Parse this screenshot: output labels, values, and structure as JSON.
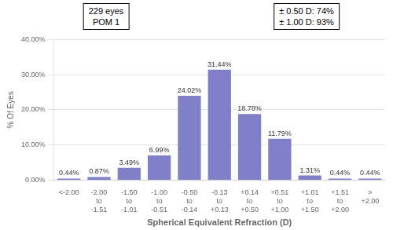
{
  "chart_data": {
    "type": "bar",
    "categories": [
      "<-2.00",
      "-2.00\nto\n-1.51",
      "-1.50\nto\n-1.01",
      "-1.00\nto\n-0.51",
      "-0.50\nto\n-0.14",
      "-0.13\nto\n+0.13",
      "+0.14\nto\n+0.50",
      "+0.51\nto\n+1.00",
      "+1.01\nto\n+1.50",
      "+1.51\nto\n+2.00",
      ">\n+2.00"
    ],
    "values": [
      0.44,
      0.87,
      3.49,
      6.99,
      24.02,
      31.44,
      18.78,
      11.79,
      1.31,
      0.44,
      0.44
    ],
    "value_labels": [
      "0.44%",
      "0.87%",
      "3.49%",
      "6.99%",
      "24.02%",
      "31.44%",
      "18.78%",
      "11.79%",
      "1.31%",
      "0.44%",
      "0.44%"
    ],
    "data_labels": true,
    "color": "#8080c8",
    "ylim": [
      0,
      40
    ],
    "yticks": [
      {
        "value": 0,
        "label": "0.00%"
      },
      {
        "value": 10,
        "label": "10.00%"
      },
      {
        "value": 20,
        "label": "20.00%"
      },
      {
        "value": 30,
        "label": "30.00%"
      },
      {
        "value": 40,
        "label": "40.00%"
      }
    ],
    "y_label": "% Of Eyes",
    "x_label": "Spherical Equivalent Refraction (D)",
    "annotations": [
      "229 eyes\nPOM 1",
      "± 0.50 D: 74%\n± 1.00 D: 93%"
    ],
    "grid": true
  }
}
